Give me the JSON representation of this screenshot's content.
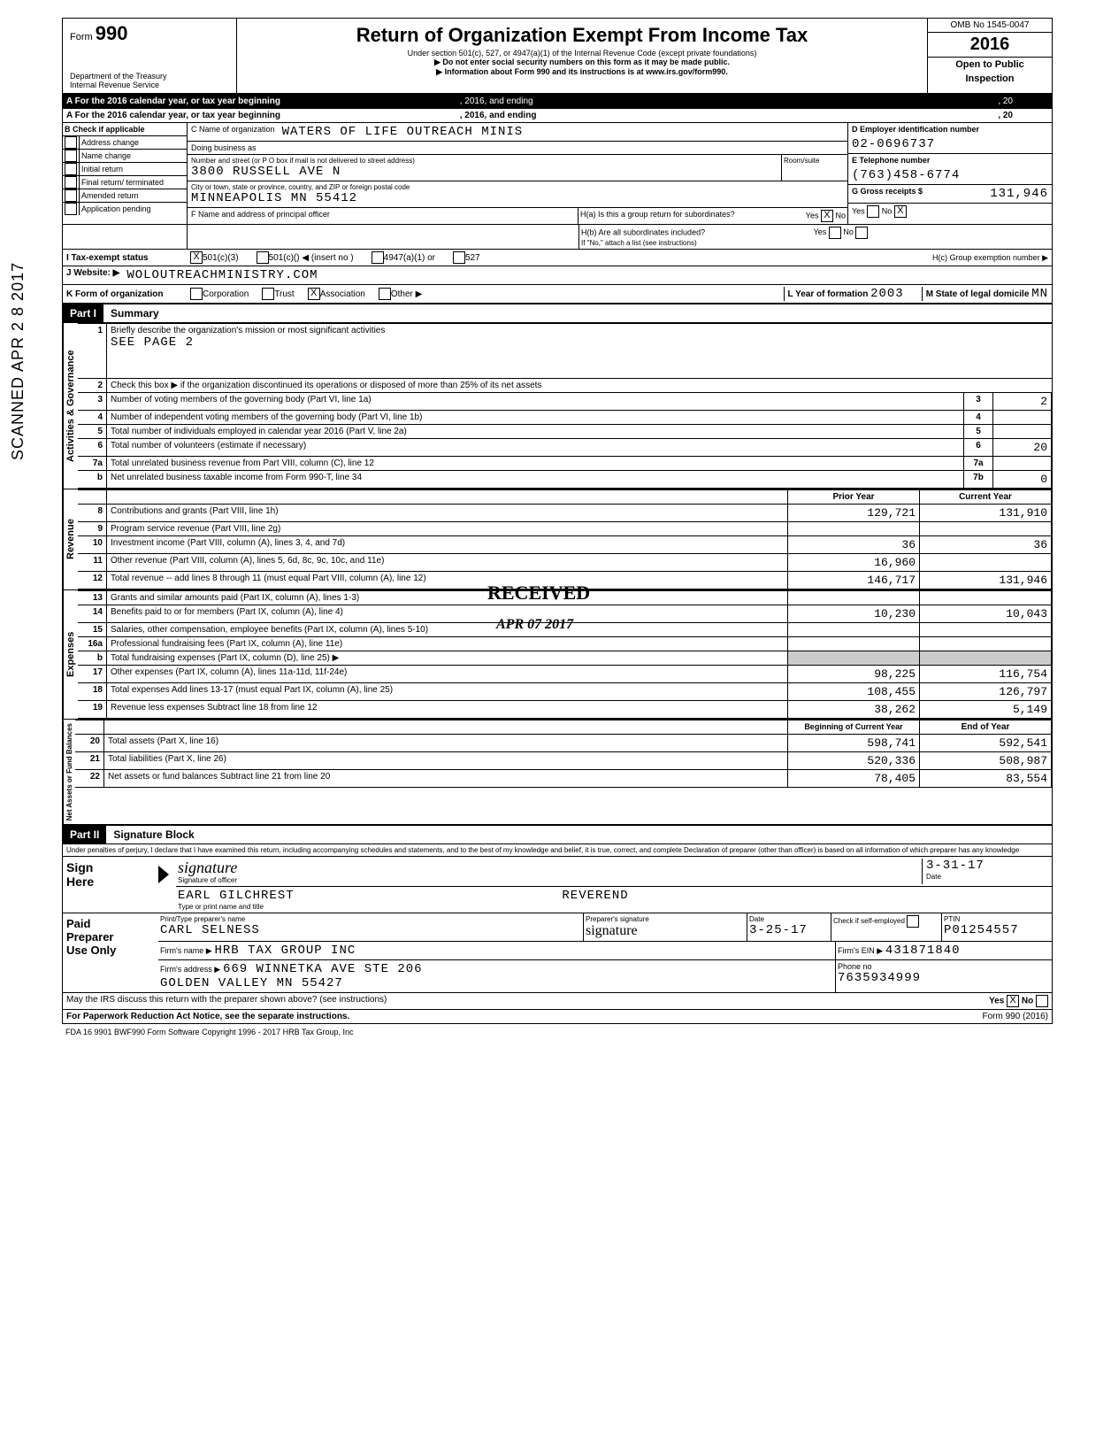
{
  "scanned_stamp": "SCANNED APR 2 8 2017",
  "header": {
    "form_prefix": "Form",
    "form_number": "990",
    "dept": "Department of the Treasury",
    "irs": "Internal Revenue Service",
    "title": "Return of Organization Exempt From Income Tax",
    "sub1": "Under section 501(c), 527, or 4947(a)(1) of the Internal Revenue Code (except private foundations)",
    "sub2": "▶ Do not enter social security numbers on this form as it may be made public.",
    "sub3": "▶ Information about Form 990 and its instructions is at www.irs.gov/form990.",
    "omb": "OMB No 1545-0047",
    "year": "2016",
    "open1": "Open to Public",
    "open2": "Inspection"
  },
  "line_a": {
    "text": "A  For the 2016 calendar year, or tax year beginning",
    "mid": ", 2016, and ending",
    "end": ", 20"
  },
  "section_b": {
    "header": "B Check if applicable",
    "items": [
      "Address change",
      "Name change",
      "Initial return",
      "Final return/ terminated",
      "Amended return",
      "Application pending"
    ]
  },
  "section_c": {
    "c_label": "C Name of organization",
    "org_name": "WATERS OF LIFE OUTREACH MINIS",
    "dba": "Doing business as",
    "street_label": "Number and street (or P O  box if mail is not delivered to street address)",
    "street": "3800 RUSSELL AVE N",
    "room_label": "Room/suite",
    "city_label": "City or town, state or province, country, and ZIP or foreign postal code",
    "city": "MINNEAPOLIS MN 55412",
    "f_label": "F  Name and address of principal officer"
  },
  "section_d": {
    "label": "D Employer identification number",
    "ein": "02-0696737",
    "e_label": "E Telephone number",
    "phone": "(763)458-6774",
    "g_label": "G Gross receipts $",
    "gross": "131,946"
  },
  "section_h": {
    "ha": "H(a)  Is this a group return for subordinates?",
    "hb": "H(b)  Are all subordinates included?",
    "hb_note": "If \"No,\" attach a list (see instructions)",
    "hc": "H(c)  Group exemption number  ▶",
    "yes": "Yes",
    "no": "No"
  },
  "line_i": {
    "label": "I   Tax-exempt status",
    "opt1": "501(c)(3)",
    "opt2": "501(c)(",
    "insert": ")  ◀ (insert no )",
    "opt3": "4947(a)(1) or",
    "opt4": "527"
  },
  "line_j": {
    "label": "J  Website: ▶",
    "value": "WOLOUTREACHMINISTRY.COM"
  },
  "line_k": {
    "label": "K  Form of organization",
    "opts": [
      "Corporation",
      "Trust",
      "Association",
      "Other ▶"
    ],
    "year_label": "L Year of formation",
    "year_val": "2003",
    "state_label": "M State of legal domicile",
    "state_val": "MN"
  },
  "part1": {
    "header": "Part I",
    "title": "Summary"
  },
  "governance": {
    "label": "Activities & Governance",
    "line1": "Briefly describe the organization's mission or most significant activities",
    "line1_val": "SEE PAGE 2",
    "line2": "Check this box ▶      if the organization discontinued its operations or disposed of more than 25% of its net assets",
    "line3": "Number of voting members of the governing body (Part VI, line 1a)",
    "line3_val": "2",
    "line4": "Number of independent voting members of the governing body (Part VI, line 1b)",
    "line5": "Total number of individuals employed in calendar year 2016 (Part V, line 2a)",
    "line6": "Total number of volunteers (estimate if necessary)",
    "line6_val": "20",
    "line7a": "Total unrelated business revenue from Part VIII, column (C), line 12",
    "line7b": "Net unrelated business taxable income from Form 990-T, line 34",
    "line7b_val": "0"
  },
  "revenue": {
    "label": "Revenue",
    "prior_header": "Prior Year",
    "current_header": "Current Year",
    "rows": [
      {
        "n": "8",
        "desc": "Contributions and grants (Part VIII, line 1h)",
        "prior": "129,721",
        "current": "131,910"
      },
      {
        "n": "9",
        "desc": "Program service revenue (Part VIII, line 2g)",
        "prior": "",
        "current": ""
      },
      {
        "n": "10",
        "desc": "Investment income (Part VIII, column (A), lines 3, 4, and 7d)",
        "prior": "36",
        "current": "36"
      },
      {
        "n": "11",
        "desc": "Other revenue (Part VIII, column (A), lines 5, 6d, 8c, 9c, 10c, and 11e)",
        "prior": "16,960",
        "current": ""
      },
      {
        "n": "12",
        "desc": "Total revenue -- add lines 8 through 11 (must equal Part VIII, column (A), line 12)",
        "prior": "146,717",
        "current": "131,946"
      }
    ]
  },
  "expenses": {
    "label": "Expenses",
    "rows": [
      {
        "n": "13",
        "desc": "Grants and similar amounts paid (Part IX, column (A), lines 1-3)",
        "prior": "",
        "current": ""
      },
      {
        "n": "14",
        "desc": "Benefits paid to or for members (Part IX, column (A), line 4)",
        "prior": "10,230",
        "current": "10,043"
      },
      {
        "n": "15",
        "desc": "Salaries, other compensation, employee benefits (Part IX, column (A), lines 5-10)",
        "prior": "",
        "current": ""
      },
      {
        "n": "16a",
        "desc": "Professional fundraising fees (Part IX, column (A), line 11e)",
        "prior": "",
        "current": ""
      },
      {
        "n": "b",
        "desc": "Total fundraising expenses (Part IX, column (D), line 25)     ▶",
        "prior": "",
        "current": ""
      },
      {
        "n": "17",
        "desc": "Other expenses (Part IX, column (A), lines 11a-11d, 11f-24e)",
        "prior": "98,225",
        "current": "116,754"
      },
      {
        "n": "18",
        "desc": "Total expenses  Add lines 13-17 (must equal Part IX, column (A), line 25)",
        "prior": "108,455",
        "current": "126,797"
      },
      {
        "n": "19",
        "desc": "Revenue less expenses  Subtract line 18 from line 12",
        "prior": "38,262",
        "current": "5,149"
      }
    ]
  },
  "netassets": {
    "label": "Net Assets or Fund Balances",
    "begin_header": "Beginning of Current Year",
    "end_header": "End of Year",
    "rows": [
      {
        "n": "20",
        "desc": "Total assets (Part X, line 16)",
        "prior": "598,741",
        "current": "592,541"
      },
      {
        "n": "21",
        "desc": "Total liabilities (Part X, line 26)",
        "prior": "520,336",
        "current": "508,987"
      },
      {
        "n": "22",
        "desc": "Net assets or fund balances  Subtract line 21 from line 20",
        "prior": "78,405",
        "current": "83,554"
      }
    ]
  },
  "part2": {
    "header": "Part II",
    "title": "Signature Block",
    "perjury": "Under penalties of perjury, I declare that I have examined this return, including accompanying schedules and statements, and to the best of my knowledge and belief, it is true, correct, and complete  Declaration of preparer (other than officer) is based on all information of which preparer has any knowledge"
  },
  "sign": {
    "label": "Sign Here",
    "sig_label": "Signature of officer",
    "date_label": "Date",
    "date_val": "3-31-17",
    "name": "EARL GILCHREST",
    "title": "REVEREND",
    "type_label": "Type or print name and title"
  },
  "preparer": {
    "label": "Paid Preparer Use Only",
    "print_label": "Print/Type preparer's name",
    "name": "CARL SELNESS",
    "sig_label": "Preparer's signature",
    "date_label": "Date",
    "date_val": "3-25-17",
    "check_label": "Check       if self-employed",
    "ptin_label": "PTIN",
    "ptin": "P01254557",
    "firm_label": "Firm's name  ▶",
    "firm": "HRB TAX GROUP INC",
    "ein_label": "Firm's EIN ▶",
    "ein": "431871840",
    "addr_label": "Firm's address   ▶",
    "addr": "669 WINNETKA AVE STE 206",
    "addr2": "GOLDEN VALLEY MN 55427",
    "phone_label": "Phone no",
    "phone": "7635934999"
  },
  "footer": {
    "irs_discuss": "May the IRS discuss this return with the preparer shown above? (see instructions)",
    "paperwork": "For Paperwork Reduction Act Notice, see the separate instructions.",
    "form_ref": "Form 990 (2016)",
    "fda": "FDA    16  9901      BWF990      Form Software Copyright 1996 - 2017 HRB Tax Group, Inc"
  },
  "received_stamp": "RECEIVED",
  "received_date": "APR 07 2017"
}
